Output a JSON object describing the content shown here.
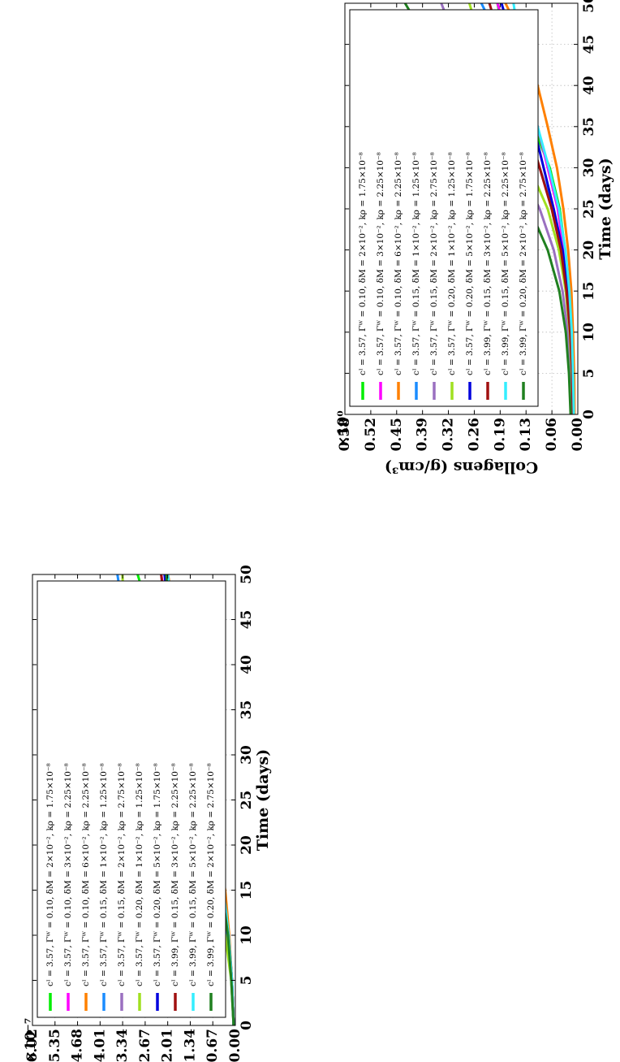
{
  "chart_data": [
    {
      "type": "line",
      "xlabel": "Time (days)",
      "ylabel": "Signaling molecules (g/cm³)",
      "scale_label": "×10⁻⁷",
      "xlim": [
        0,
        50
      ],
      "ylim": [
        0,
        6.02
      ],
      "x_ticks": [
        "0",
        "5",
        "10",
        "15",
        "20",
        "25",
        "30",
        "35",
        "40",
        "45",
        "50"
      ],
      "y_ticks": [
        "0.00",
        "0.67",
        "1.34",
        "2.01",
        "2.67",
        "3.34",
        "4.01",
        "4.68",
        "5.35",
        "6.02"
      ],
      "grid": true,
      "legend_position": "top-left",
      "x": [
        0,
        5,
        10,
        15,
        20,
        25,
        30,
        35,
        40,
        45,
        50
      ],
      "series": [
        {
          "name": "cᴵ = 3.57, Γᵂ = 0.10, δM = 2×10⁻², kρ = 1.75×10⁻⁸",
          "color": "#00ee00",
          "values": [
            0.05,
            0.1,
            0.2,
            0.35,
            0.6,
            0.95,
            1.25,
            1.6,
            2.1,
            2.5,
            2.9
          ]
        },
        {
          "name": "cᴵ = 3.57, Γᵂ = 0.10, δM = 3×10⁻², kρ = 2.25×10⁻⁸",
          "color": "#ff00ff",
          "values": [
            0.05,
            0.1,
            0.2,
            0.35,
            0.6,
            0.95,
            1.2,
            1.45,
            1.7,
            1.95,
            2.2
          ]
        },
        {
          "name": "cᴵ = 3.57, Γᵂ = 0.10, δM = 6×10⁻², kρ = 2.25×10⁻⁸",
          "color": "#ff8000",
          "values": [
            0.05,
            0.1,
            0.18,
            0.3,
            0.5,
            0.8,
            1.0,
            1.25,
            1.5,
            1.75,
            2.0
          ]
        },
        {
          "name": "cᴵ = 3.57, Γᵂ = 0.15, δM = 1×10⁻², kρ = 1.25×10⁻⁸",
          "color": "#1a8cff",
          "values": [
            0.05,
            0.1,
            0.25,
            0.45,
            0.8,
            1.3,
            1.9,
            2.5,
            3.0,
            3.3,
            3.5
          ]
        },
        {
          "name": "cᴵ = 3.57, Γᵂ = 0.15, δM = 2×10⁻², kρ = 2.75×10⁻⁸",
          "color": "#9a70c0",
          "values": [
            0.05,
            0.12,
            0.22,
            0.4,
            0.65,
            1.0,
            1.3,
            1.6,
            1.8,
            1.95,
            2.05
          ]
        },
        {
          "name": "cᴵ = 3.57, Γᵂ = 0.20, δM = 1×10⁻², kρ = 1.25×10⁻⁸",
          "color": "#a0e020",
          "values": [
            0.05,
            0.12,
            0.3,
            0.55,
            0.95,
            1.6,
            2.2,
            2.8,
            3.15,
            3.3,
            3.35
          ]
        },
        {
          "name": "cᴵ = 3.57, Γᵂ = 0.20, δM = 5×10⁻², kρ = 1.75×10⁻⁸",
          "color": "#0000dd",
          "values": [
            0.05,
            0.1,
            0.2,
            0.38,
            0.62,
            0.98,
            1.25,
            1.55,
            1.75,
            1.95,
            2.1
          ]
        },
        {
          "name": "cᴵ = 3.99, Γᵂ = 0.15, δM = 3×10⁻², kρ = 2.25×10⁻⁸",
          "color": "#a01010",
          "values": [
            0.05,
            0.1,
            0.2,
            0.36,
            0.62,
            0.98,
            1.28,
            1.55,
            1.85,
            2.05,
            2.2
          ]
        },
        {
          "name": "cᴵ = 3.99, Γᵂ = 0.15, δM = 5×10⁻², kρ = 2.25×10⁻⁸",
          "color": "#33eeff",
          "values": [
            0.05,
            0.1,
            0.2,
            0.35,
            0.58,
            0.9,
            1.15,
            1.4,
            1.65,
            1.85,
            2.0
          ]
        },
        {
          "name": "cᴵ = 3.99, Γᵂ = 0.20, δM = 2×10⁻², kρ = 2.75×10⁻⁸",
          "color": "#208020",
          "values": [
            0.05,
            0.12,
            0.22,
            0.4,
            0.68,
            1.02,
            1.35,
            1.6,
            1.75,
            1.95,
            2.05
          ]
        }
      ]
    },
    {
      "type": "line",
      "xlabel": "Time (days)",
      "ylabel": "Collagens (g/cm³)",
      "scale_label": "×10⁰",
      "xlim": [
        0,
        50
      ],
      "ylim": [
        0,
        0.58
      ],
      "x_ticks": [
        "0",
        "5",
        "10",
        "15",
        "20",
        "25",
        "30",
        "35",
        "40",
        "45",
        "50"
      ],
      "y_ticks": [
        "0.00",
        "0.06",
        "0.13",
        "0.19",
        "0.26",
        "0.32",
        "0.39",
        "0.45",
        "0.52",
        "0.58"
      ],
      "grid": true,
      "legend_position": "top-left",
      "x": [
        0,
        5,
        10,
        15,
        20,
        25,
        30,
        35,
        40,
        45,
        50
      ],
      "series": [
        {
          "name": "cᴵ = 3.57, Γᵂ = 0.10, δM = 2×10⁻², kρ = 1.75×10⁻⁸",
          "color": "#00ee00",
          "values": [
            0.01,
            0.012,
            0.016,
            0.022,
            0.032,
            0.045,
            0.07,
            0.11,
            0.15,
            0.18,
            0.2
          ]
        },
        {
          "name": "cᴵ = 3.57, Γᵂ = 0.10, δM = 3×10⁻², kρ = 2.25×10⁻⁸",
          "color": "#ff00ff",
          "values": [
            0.01,
            0.012,
            0.017,
            0.024,
            0.035,
            0.05,
            0.075,
            0.1,
            0.13,
            0.17,
            0.2
          ]
        },
        {
          "name": "cᴵ = 3.57, Γᵂ = 0.10, δM = 6×10⁻², kρ = 2.25×10⁻⁸",
          "color": "#ff8000",
          "values": [
            0.008,
            0.009,
            0.012,
            0.016,
            0.024,
            0.036,
            0.052,
            0.075,
            0.1,
            0.13,
            0.18
          ]
        },
        {
          "name": "cᴵ = 3.57, Γᵂ = 0.15, δM = 1×10⁻², kρ = 1.25×10⁻⁸",
          "color": "#1a8cff",
          "values": [
            0.012,
            0.014,
            0.018,
            0.026,
            0.04,
            0.062,
            0.095,
            0.13,
            0.16,
            0.19,
            0.24
          ]
        },
        {
          "name": "cᴵ = 3.57, Γᵂ = 0.15, δM = 2×10⁻², kρ = 2.75×10⁻⁸",
          "color": "#9a70c0",
          "values": [
            0.014,
            0.018,
            0.025,
            0.038,
            0.06,
            0.095,
            0.145,
            0.195,
            0.25,
            0.3,
            0.34
          ]
        },
        {
          "name": "cᴵ = 3.57, Γᵂ = 0.20, δM = 1×10⁻², kρ = 1.25×10⁻⁸",
          "color": "#a0e020",
          "values": [
            0.012,
            0.015,
            0.02,
            0.03,
            0.047,
            0.075,
            0.12,
            0.16,
            0.2,
            0.24,
            0.27
          ]
        },
        {
          "name": "cᴵ = 3.57, Γᵂ = 0.20, δM = 5×10⁻², kρ = 1.75×10⁻⁸",
          "color": "#0000dd",
          "values": [
            0.012,
            0.014,
            0.018,
            0.025,
            0.038,
            0.06,
            0.085,
            0.11,
            0.13,
            0.16,
            0.19
          ]
        },
        {
          "name": "cᴵ = 3.99, Γᵂ = 0.15, δM = 3×10⁻², kρ = 2.25×10⁻⁸",
          "color": "#a01010",
          "values": [
            0.012,
            0.014,
            0.019,
            0.028,
            0.042,
            0.065,
            0.095,
            0.125,
            0.16,
            0.19,
            0.22
          ]
        },
        {
          "name": "cᴵ = 3.99, Γᵂ = 0.15, δM = 5×10⁻², kρ = 2.25×10⁻⁸",
          "color": "#33eeff",
          "values": [
            0.01,
            0.012,
            0.015,
            0.021,
            0.031,
            0.047,
            0.072,
            0.1,
            0.125,
            0.145,
            0.16
          ]
        },
        {
          "name": "cᴵ = 3.99, Γᵂ = 0.20, δM = 2×10⁻², kρ = 2.75×10⁻⁸",
          "color": "#208020",
          "values": [
            0.018,
            0.022,
            0.03,
            0.046,
            0.075,
            0.12,
            0.18,
            0.245,
            0.31,
            0.37,
            0.43
          ]
        }
      ]
    }
  ]
}
